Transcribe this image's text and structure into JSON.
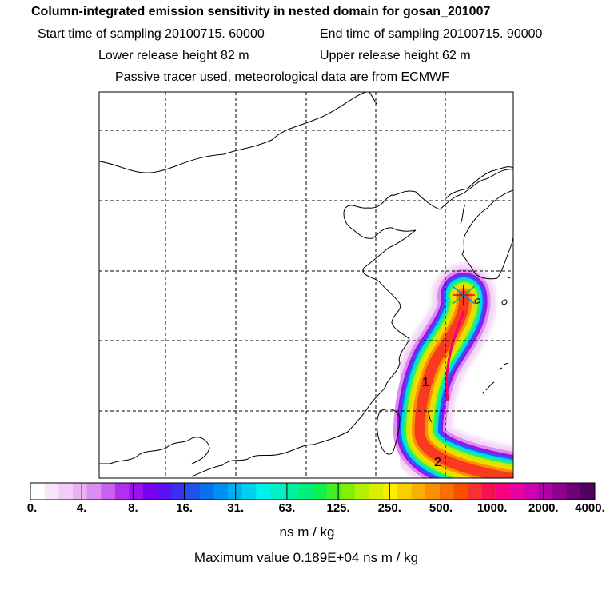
{
  "header": {
    "title": "Column-integrated emission sensitivity in nested domain for gosan_201007",
    "start_label": "Start time of sampling 20100715. 60000",
    "end_label": "End time of sampling 20100715. 90000",
    "lower_label": "Lower release height   82 m",
    "upper_label": "Upper release height   62 m",
    "note": "Passive tracer used, meteorological data are from ECMWF"
  },
  "map": {
    "time_markers": [
      "1",
      "2"
    ],
    "receptor_icon": "receptor-star-icon"
  },
  "colorbar": {
    "labels": [
      "0.",
      "4.",
      "8.",
      "16.",
      "31.",
      "63.",
      "125.",
      "250.",
      "500.",
      "1000.",
      "2000.",
      "4000."
    ],
    "colors": [
      "#ffffff",
      "#fbe5fb",
      "#f4ccf7",
      "#eab0f4",
      "#dd8cf0",
      "#c860f0",
      "#b030f0",
      "#9a10f0",
      "#7700f0",
      "#5a10f0",
      "#3a30f0",
      "#2050f0",
      "#0a70f0",
      "#0090f0",
      "#00b0f0",
      "#00d0f0",
      "#00f0f0",
      "#00f0c8",
      "#00f0a0",
      "#00f078",
      "#10f050",
      "#40f020",
      "#80f000",
      "#b0f000",
      "#d8f000",
      "#f8f000",
      "#f8d000",
      "#f8b000",
      "#f89000",
      "#f87000",
      "#f85000",
      "#f83030",
      "#f81050",
      "#f80080",
      "#e800a0",
      "#d000b0",
      "#b000a8",
      "#900090",
      "#700078",
      "#500060"
    ],
    "units": "ns m / kg",
    "max_value_text": "Maximum value  0.189E+04 ns m / kg"
  }
}
